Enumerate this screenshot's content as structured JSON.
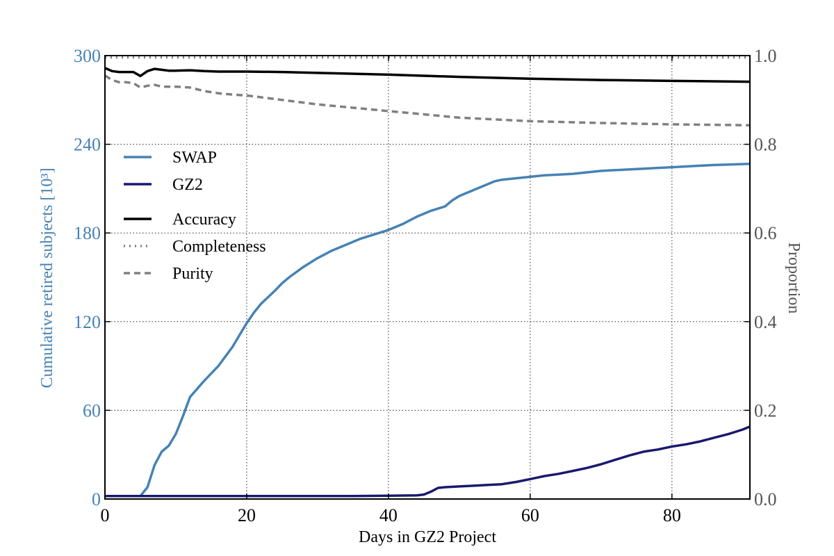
{
  "chart_data": {
    "type": "line",
    "xlabel": "Days in GZ2 Project",
    "ylabel_left": "Cumulative retired subjects [10³]",
    "ylabel_right": "Proportion",
    "xlim": [
      0,
      91
    ],
    "ylim_left": [
      0,
      300
    ],
    "ylim_right": [
      0.0,
      1.0
    ],
    "x_ticks": [
      "0",
      "20",
      "40",
      "60",
      "80"
    ],
    "y_left_ticks": [
      "0",
      "60",
      "120",
      "180",
      "240",
      "300"
    ],
    "y_right_ticks": [
      "0.0",
      "0.2",
      "0.4",
      "0.6",
      "0.8",
      "1.0"
    ],
    "grid": true,
    "legend_position": "upper-left",
    "colors": {
      "SWAP": "#4682b4",
      "GZ2": "#191970",
      "Accuracy": "#000000",
      "Completeness": "#808080",
      "Purity": "#808080",
      "left_axis": "#4682b4",
      "right_axis": "#555555"
    },
    "series": [
      {
        "name": "SWAP",
        "axis": "left",
        "style": "solid",
        "x": [
          0,
          5,
          6,
          7,
          8,
          9,
          10,
          11,
          12,
          14,
          16,
          18,
          19,
          20,
          21,
          22,
          24,
          25,
          26,
          28,
          30,
          32,
          34,
          36,
          38,
          40,
          42,
          44,
          46,
          48,
          49,
          50,
          52,
          54,
          55,
          56,
          58,
          60,
          62,
          64,
          66,
          68,
          70,
          72,
          74,
          76,
          78,
          80,
          82,
          84,
          86,
          88,
          91
        ],
        "y": [
          2,
          2,
          8,
          23,
          32,
          36,
          44,
          56,
          69,
          80,
          90,
          103,
          111,
          119,
          126,
          132,
          141,
          146,
          150,
          157,
          163,
          168,
          172,
          176,
          179,
          182,
          186,
          191,
          195,
          198,
          202,
          205,
          209,
          213,
          215,
          216,
          217,
          218,
          219,
          219.5,
          220,
          221,
          222,
          222.5,
          223,
          223.5,
          224,
          224.5,
          225,
          225.5,
          226,
          226.3,
          226.8
        ]
      },
      {
        "name": "GZ2",
        "axis": "left",
        "style": "solid",
        "x": [
          0,
          10,
          20,
          30,
          35,
          40,
          44,
          45,
          46,
          47,
          48,
          50,
          52,
          54,
          56,
          58,
          60,
          61,
          62,
          64,
          66,
          68,
          70,
          72,
          74,
          76,
          78,
          80,
          82,
          84,
          86,
          88,
          90,
          91
        ],
        "y": [
          2,
          2,
          2,
          2,
          2,
          2.2,
          2.5,
          3,
          5,
          7.5,
          8,
          8.5,
          9,
          9.5,
          10,
          11.5,
          13.5,
          14.5,
          15.5,
          17,
          19,
          21,
          23.5,
          26.5,
          29.5,
          32,
          33.5,
          35.5,
          37,
          39,
          41.5,
          44,
          47,
          49
        ]
      },
      {
        "name": "Accuracy",
        "axis": "right",
        "style": "solid",
        "x": [
          0,
          1,
          2,
          3,
          4,
          5,
          6,
          7,
          8,
          9,
          10,
          12,
          14,
          16,
          18,
          20,
          25,
          30,
          40,
          50,
          60,
          70,
          80,
          91
        ],
        "y": [
          0.972,
          0.965,
          0.963,
          0.963,
          0.963,
          0.954,
          0.965,
          0.97,
          0.968,
          0.966,
          0.966,
          0.967,
          0.965,
          0.964,
          0.964,
          0.964,
          0.963,
          0.961,
          0.957,
          0.952,
          0.948,
          0.945,
          0.943,
          0.941
        ]
      },
      {
        "name": "Completeness",
        "axis": "right",
        "style": "dotted",
        "x": [
          0,
          91
        ],
        "y": [
          0.996,
          0.996
        ]
      },
      {
        "name": "Purity",
        "axis": "right",
        "style": "dashed",
        "x": [
          0,
          1,
          2,
          3,
          4,
          5,
          6,
          7,
          8,
          9,
          10,
          12,
          14,
          16,
          18,
          20,
          25,
          30,
          40,
          50,
          60,
          70,
          80,
          91
        ],
        "y": [
          0.955,
          0.945,
          0.94,
          0.94,
          0.938,
          0.928,
          0.932,
          0.934,
          0.93,
          0.93,
          0.93,
          0.928,
          0.92,
          0.915,
          0.912,
          0.91,
          0.9,
          0.89,
          0.875,
          0.86,
          0.852,
          0.848,
          0.845,
          0.843
        ]
      }
    ]
  }
}
